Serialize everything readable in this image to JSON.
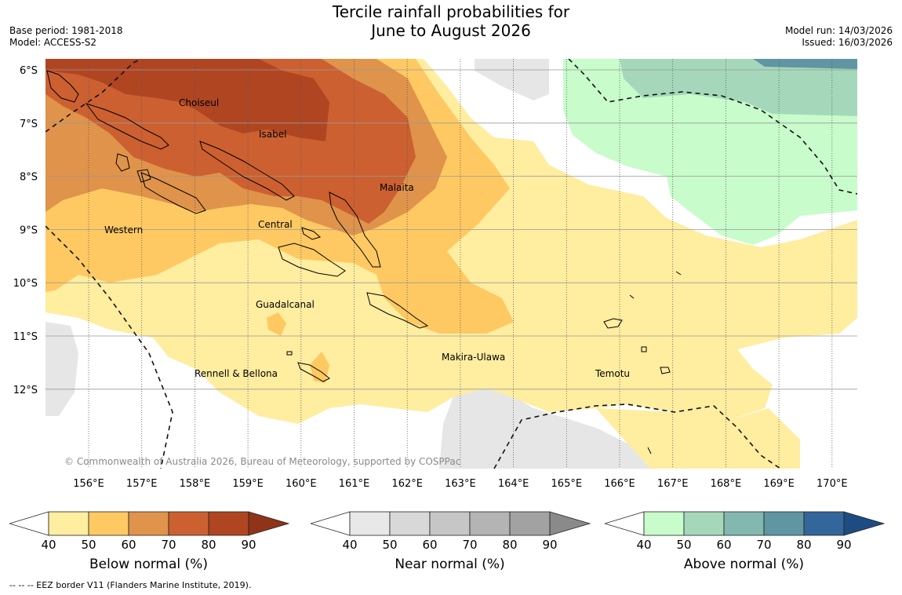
{
  "header": {
    "title_line1": "Tercile rainfall probabilities for",
    "title_line2": "June to August 2026",
    "base_period": "Base period: 1981-2018",
    "model": "Model: ACCESS-S2",
    "model_run": "Model run: 14/03/2026",
    "issued": "Issued: 16/03/2026"
  },
  "map": {
    "lat_labels": [
      "6°S",
      "7°S",
      "8°S",
      "9°S",
      "10°S",
      "11°S",
      "12°S"
    ],
    "lon_labels": [
      "156°E",
      "157°E",
      "158°E",
      "159°E",
      "160°E",
      "161°E",
      "162°E",
      "163°E",
      "164°E",
      "165°E",
      "166°E",
      "167°E",
      "168°E",
      "169°E",
      "170°E"
    ],
    "regions": {
      "choiseul": "Choiseul",
      "isabel": "Isabel",
      "malaita": "Malaita",
      "western": "Western",
      "central": "Central",
      "guadalcanal": "Guadalcanal",
      "makira": "Makira-Ulawa",
      "rennell": "Rennell & Bellona",
      "temotu": "Temotu"
    },
    "copyright": "© Commonwealth of Australia 2026, Bureau of Meteorology, supported by COSPPac"
  },
  "colorbars": [
    {
      "title": "Below normal (%)",
      "ticks": [
        "40",
        "50",
        "60",
        "70",
        "80",
        "90"
      ],
      "colors": [
        "#ffeda0",
        "#fec962",
        "#e0934a",
        "#cc6030",
        "#b04522",
        "#8f3418"
      ]
    },
    {
      "title": "Near normal (%)",
      "ticks": [
        "40",
        "50",
        "60",
        "70",
        "80",
        "90"
      ],
      "colors": [
        "#e8e8e8",
        "#d8d8d8",
        "#c6c6c6",
        "#b4b4b4",
        "#a2a2a2",
        "#8a8a8a"
      ]
    },
    {
      "title": "Above normal (%)",
      "ticks": [
        "40",
        "50",
        "60",
        "70",
        "80",
        "90"
      ],
      "colors": [
        "#c8fccb",
        "#a5d8bb",
        "#82b8b0",
        "#5f96a2",
        "#33669a",
        "#1c4c82"
      ]
    }
  ],
  "legend_note": "-- -- -- EEZ border V11 (Flanders Marine Institute, 2019)."
}
